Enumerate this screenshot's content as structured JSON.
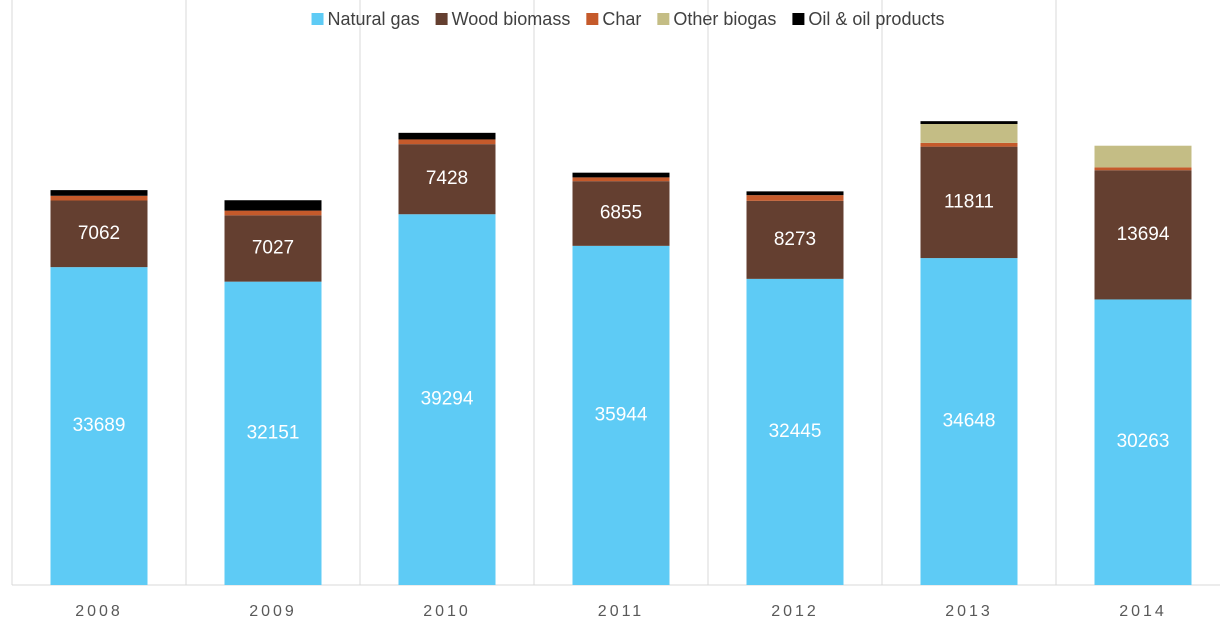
{
  "chart_data": {
    "type": "stacked_bar",
    "categories": [
      "2008",
      "2009",
      "2010",
      "2011",
      "2012",
      "2013",
      "2014"
    ],
    "series": [
      {
        "name": "Natural gas",
        "color": "#5ecbf5",
        "values": [
          33689,
          32151,
          39294,
          35944,
          32445,
          34648,
          30263
        ],
        "show_labels": true
      },
      {
        "name": "Wood biomass",
        "color": "#643f30",
        "values": [
          7062,
          7027,
          7428,
          6855,
          8273,
          11811,
          13694
        ],
        "show_labels": true
      },
      {
        "name": "Char",
        "color": "#c55a2b",
        "values": [
          500,
          500,
          500,
          400,
          600,
          400,
          300
        ]
      },
      {
        "name": "Other biogas",
        "color": "#c4bd85",
        "values": [
          0,
          0,
          0,
          0,
          0,
          2000,
          2300
        ]
      },
      {
        "name": "Oil & oil products",
        "color": "#000000",
        "values": [
          600,
          1100,
          700,
          500,
          400,
          300,
          0
        ]
      }
    ],
    "ylim": [
      0,
      62000
    ],
    "legend": "top"
  }
}
